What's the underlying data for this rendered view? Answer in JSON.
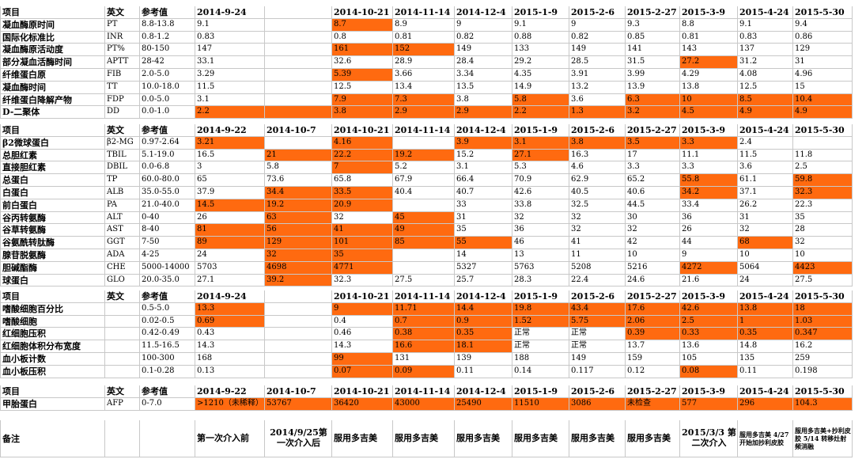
{
  "tables": [
    {
      "id": "coag",
      "header": [
        "项目",
        "英文",
        "参考值",
        "2014-9-24",
        "",
        "2014-10-21",
        "2014-11-14",
        "2014-12-4",
        "2015-1-9",
        "2015-2-6",
        "2015-2-27",
        "2015-3-9",
        "2015-4-24",
        "2015-5-30"
      ],
      "rows": [
        {
          "c": [
            "凝血酶原时间",
            "PT",
            "8.8-13.8",
            "9.1",
            "",
            "8.7",
            "8.9",
            "9",
            "9.1",
            "9",
            "9.3",
            "8.8",
            "9.1",
            "9.4"
          ],
          "hl": [
            5
          ]
        },
        {
          "c": [
            "国际化标准比",
            "INR",
            "0.8-1.2",
            "0.83",
            "",
            "0.8",
            "0.81",
            "0.82",
            "0.88",
            "0.82",
            "0.85",
            "0.81",
            "0.83",
            "0.86"
          ],
          "hl": []
        },
        {
          "c": [
            "凝血酶原活动度",
            "PT%",
            "80-150",
            "147",
            "",
            "161",
            "152",
            "149",
            "133",
            "149",
            "141",
            "143",
            "137",
            "129"
          ],
          "hl": [
            5,
            6
          ]
        },
        {
          "c": [
            "部分凝血活酶时间",
            "APTT",
            "28-42",
            "33.1",
            "",
            "32.6",
            "28.9",
            "28.4",
            "29.2",
            "28.5",
            "31.5",
            "27.2",
            "31.2",
            "31"
          ],
          "hl": [
            11
          ]
        },
        {
          "c": [
            "纤维蛋白原",
            "FIB",
            "2.0-5.0",
            "3.29",
            "",
            "5.39",
            "3.66",
            "3.34",
            "4.35",
            "3.91",
            "3.99",
            "4.29",
            "4.08",
            "4.96"
          ],
          "hl": [
            5
          ]
        },
        {
          "c": [
            "凝血酶时间",
            "TT",
            "10.0-18.0",
            "11.5",
            "",
            "12.5",
            "13.4",
            "13.5",
            "14.9",
            "13.2",
            "13.9",
            "13.8",
            "12.5",
            "15"
          ],
          "hl": []
        },
        {
          "c": [
            "纤维蛋白降解产物",
            "FDP",
            "0.0-5.0",
            "3.1",
            "",
            "7.9",
            "7.3",
            "3.8",
            "5.8",
            "3.6",
            "6.3",
            "10",
            "8.5",
            "10.4"
          ],
          "hl": [
            5,
            6,
            8,
            10,
            11,
            12,
            13
          ]
        },
        {
          "c": [
            "D-二聚体",
            "DD",
            "0.0-1.0",
            "2.2",
            "",
            "3.8",
            "2.9",
            "2.9",
            "2.2",
            "1.3",
            "3.2",
            "4.5",
            "4.9",
            "4.9"
          ],
          "hl": [
            3,
            4,
            5,
            6,
            7,
            8,
            9,
            10,
            11,
            12,
            13
          ]
        }
      ]
    },
    {
      "id": "liver",
      "header": [
        "项目",
        "英文",
        "参考值",
        "2014-9-22",
        "2014-10-7",
        "2014-10-21",
        "2014-11-14",
        "2014-12-4",
        "2015-1-9",
        "2015-2-6",
        "2015-2-27",
        "2015-3-9",
        "2015-4-24",
        "2015-5-30"
      ],
      "rows": [
        {
          "c": [
            "β2微球蛋白",
            "β2-MG",
            "0.97-2.64",
            "3.21",
            "",
            "4.16",
            "",
            "3.9",
            "3.1",
            "3.8",
            "3.5",
            "3.3",
            "2.4",
            ""
          ],
          "hl": [
            3,
            5,
            7,
            8,
            9,
            10,
            11
          ]
        },
        {
          "c": [
            "总胆红素",
            "TBIL",
            "5.1-19.0",
            "16.5",
            "21",
            "22.2",
            "19.2",
            "15.2",
            "27.1",
            "16.3",
            "17",
            "11.1",
            "11.5",
            "11.8"
          ],
          "hl": [
            4,
            5,
            6,
            8
          ]
        },
        {
          "c": [
            "直接胆红素",
            "DBIL",
            "0.0-6.8",
            "3",
            "5.8",
            "7",
            "5.2",
            "3.1",
            "5.3",
            "4.6",
            "3.3",
            "3.3",
            "3.6",
            "2.5"
          ],
          "hl": [
            5
          ]
        },
        {
          "c": [
            "总蛋白",
            "TP",
            "60.0-80.0",
            "65",
            "73.6",
            "65.8",
            "67.9",
            "66.4",
            "70.9",
            "62.9",
            "65.2",
            "55.8",
            "61.1",
            "59.8"
          ],
          "hl": [
            11,
            13
          ]
        },
        {
          "c": [
            "白蛋白",
            "ALB",
            "35.0-55.0",
            "37.9",
            "34.4",
            "33.5",
            "40.4",
            "40.7",
            "42.6",
            "40.5",
            "40.6",
            "34.2",
            "37.1",
            "32.3"
          ],
          "hl": [
            4,
            5,
            11,
            13
          ]
        },
        {
          "c": [
            "前白蛋白",
            "PA",
            "21.0-40.0",
            "14.5",
            "19.2",
            "20.9",
            "",
            "33",
            "33.8",
            "32.5",
            "44.5",
            "33.4",
            "26.2",
            "22.3"
          ],
          "hl": [
            3,
            4,
            5
          ]
        },
        {
          "c": [
            "谷丙转氨酶",
            "ALT",
            "0-40",
            "26",
            "63",
            "32",
            "45",
            "31",
            "32",
            "32",
            "30",
            "36",
            "31",
            "35"
          ],
          "hl": [
            4,
            6
          ]
        },
        {
          "c": [
            "谷草转氨酶",
            "AST",
            "8-40",
            "81",
            "56",
            "41",
            "49",
            "35",
            "36",
            "32",
            "32",
            "26",
            "32",
            "28"
          ],
          "hl": [
            3,
            4,
            5,
            6
          ]
        },
        {
          "c": [
            "谷氨酰转肽酶",
            "GGT",
            "7-50",
            "89",
            "129",
            "101",
            "85",
            "55",
            "46",
            "41",
            "42",
            "44",
            "68",
            "32"
          ],
          "hl": [
            3,
            4,
            5,
            6,
            7,
            12
          ]
        },
        {
          "c": [
            "腺苷脱氨酶",
            "ADA",
            "4-25",
            "24",
            "32",
            "35",
            "",
            "14",
            "13",
            "11",
            "10",
            "9",
            "10",
            "10"
          ],
          "hl": [
            4,
            5
          ]
        },
        {
          "c": [
            "胆碱酯酶",
            "CHE",
            "5000-14000",
            "5703",
            "4698",
            "4771",
            "",
            "5327",
            "5763",
            "5208",
            "5216",
            "4272",
            "5064",
            "4423"
          ],
          "hl": [
            4,
            5,
            11,
            13
          ]
        },
        {
          "c": [
            "球蛋白",
            "GLO",
            "20.0-35.0",
            "27.1",
            "39.2",
            "32.3",
            "27.5",
            "25.7",
            "28.3",
            "22.4",
            "24.6",
            "21.6",
            "24",
            "27.5"
          ],
          "hl": [
            4
          ]
        }
      ]
    },
    {
      "id": "blood",
      "header": [
        "项目",
        "英文",
        "参考值",
        "2014-9-24",
        "",
        "2014-10-21",
        "2014-11-14",
        "2014-12-4",
        "2015-1-9",
        "2015-2-6",
        "2015-2-27",
        "2015-3-9",
        "2015-4-24",
        "2015-5-30"
      ],
      "rows": [
        {
          "c": [
            "嗜酸细胞百分比",
            "",
            "0.5-5.0",
            "13.3",
            "",
            "9",
            "11.71",
            "14.4",
            "19.8",
            "43.4",
            "17.6",
            "42.6",
            "13.8",
            "18"
          ],
          "hl": [
            3,
            5,
            6,
            7,
            8,
            9,
            10,
            11,
            12,
            13
          ]
        },
        {
          "c": [
            "嗜酸细胞",
            "",
            "0.02-0.5",
            "0.69",
            "",
            "0.4",
            "0.7",
            "0.9",
            "1.52",
            "5.75",
            "2.06",
            "2.5",
            "1",
            "1.03"
          ],
          "hl": [
            3,
            6,
            7,
            8,
            9,
            10,
            11,
            12,
            13
          ]
        },
        {
          "c": [
            "红细胞压积",
            "",
            "0.42-0.49",
            "0.43",
            "",
            "0.46",
            "0.38",
            "0.35",
            "正常",
            "正常",
            "0.39",
            "0.33",
            "0.35",
            "0.347"
          ],
          "hl": [
            6,
            7,
            10,
            11,
            12,
            13
          ]
        },
        {
          "c": [
            "红细胞体积分布宽度",
            "",
            "11.5-16.5",
            "14.3",
            "",
            "14.3",
            "16.6",
            "18.1",
            "正常",
            "正常",
            "13.7",
            "13.6",
            "14.8",
            "16.2"
          ],
          "hl": [
            6,
            7
          ]
        },
        {
          "c": [
            "血小板计数",
            "",
            "100-300",
            "168",
            "",
            "99",
            "131",
            "139",
            "188",
            "149",
            "159",
            "105",
            "135",
            "259"
          ],
          "hl": [
            5
          ]
        },
        {
          "c": [
            "血小板压积",
            "",
            "0.1-0.28",
            "0.13",
            "",
            "0.07",
            "0.09",
            "0.11",
            "0.14",
            "0.117",
            "0.12",
            "0.08",
            "0.11",
            "0.198"
          ],
          "hl": [
            5,
            6,
            11
          ]
        }
      ]
    },
    {
      "id": "afp",
      "header": [
        "项目",
        "英文",
        "参考值",
        "2014-9-22",
        "2014-10-7",
        "2014-10-21",
        "2014-11-14",
        "2014-12-4",
        "2015-1-9",
        "2015-2-6",
        "2015-2-27",
        "2015-3-9",
        "2015-4-24",
        "2015-5-30"
      ],
      "rows": [
        {
          "c": [
            "甲胎蛋白",
            "AFP",
            "0-7.0",
            ">1210（未稀释）",
            "53767",
            "36420",
            "43000",
            "25490",
            "11510",
            "3086",
            "未检查",
            "577",
            "296",
            "104.3"
          ],
          "hl": [
            3,
            4,
            5,
            6,
            7,
            8,
            9,
            10,
            11,
            12,
            13
          ]
        }
      ]
    }
  ],
  "remarks": {
    "label": "备注",
    "cells": [
      "",
      "",
      "",
      "第一次介入前",
      "2014/9/25第一次介入后",
      "服用多吉美",
      "服用多吉美",
      "服用多吉美",
      "服用多吉美",
      "服用多吉美",
      "服用多吉美",
      "2015/3/3 第二次介入",
      "服用多吉美 4/27开始加抄利皮胶",
      "服用多吉美+抄利皮胶 5/14 转移灶射频消融"
    ]
  },
  "colors": {
    "highlight": "#ff6a10",
    "grid": "#c8c8c8",
    "background": "#ffffff"
  }
}
